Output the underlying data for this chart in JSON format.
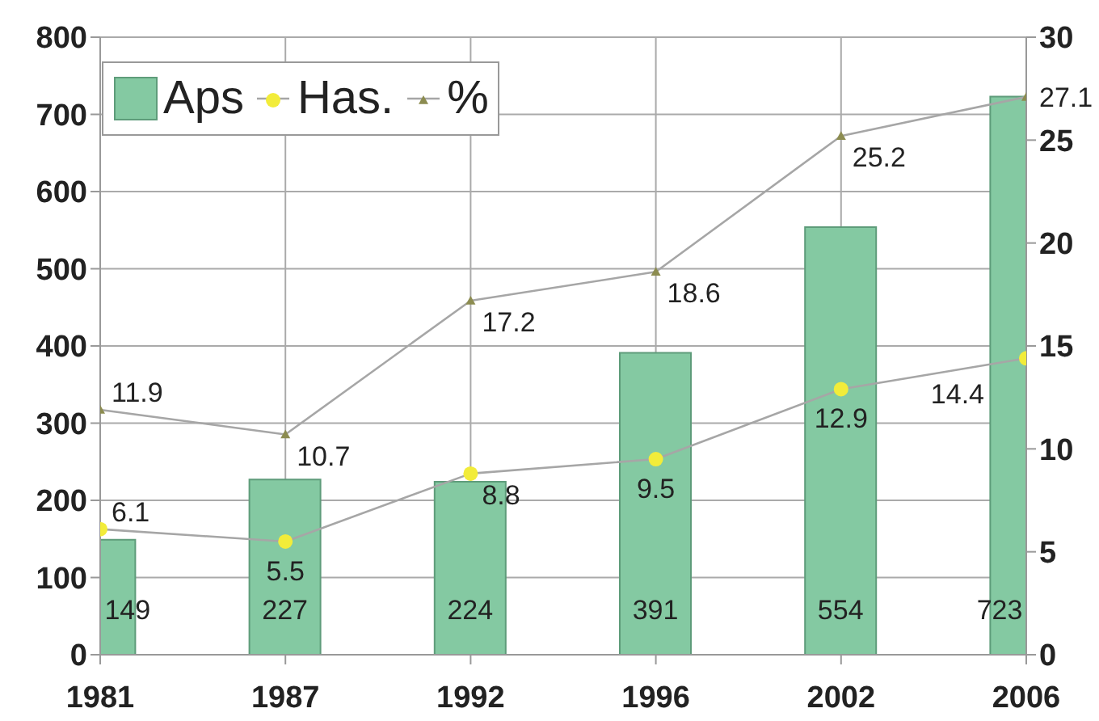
{
  "chart_data": {
    "type": "bar",
    "categories": [
      "1981",
      "1987",
      "1992",
      "1996",
      "2002",
      "2006"
    ],
    "series": [
      {
        "name": "Aps",
        "color": "#84c9a2",
        "values": [
          149,
          227,
          224,
          391,
          554,
          723
        ]
      },
      {
        "name": "Has.",
        "type": "line",
        "axis": "y2",
        "color": "#a6a6a6",
        "marker": "circle",
        "colors": [
          "#f2ec3a",
          "#f2ec3a",
          "#f2ec3a",
          "#f2ec3a",
          "#f2ec3a",
          "#f2ec3a"
        ],
        "values": [
          6.1,
          5.5,
          8.8,
          9.5,
          12.9,
          14.4
        ]
      },
      {
        "name": "%",
        "type": "line",
        "axis": "y2",
        "color": "#a6a6a6",
        "marker": "triangle",
        "colors": [
          "#8c8c50",
          "#8c8c50",
          "#8c8c50",
          "#8c8c50",
          "#8c8c50",
          "#8c8c50"
        ],
        "values": [
          11.9,
          10.7,
          17.2,
          18.6,
          25.2,
          27.1
        ]
      }
    ],
    "ylim": [
      0,
      800
    ],
    "yticks": [
      0,
      100,
      200,
      300,
      400,
      500,
      600,
      700,
      800
    ],
    "y2lim": [
      0,
      30
    ],
    "y2ticks": [
      0,
      5,
      10,
      15,
      20,
      25,
      30
    ],
    "grid": true,
    "legend": "top left",
    "data_labels": true
  }
}
